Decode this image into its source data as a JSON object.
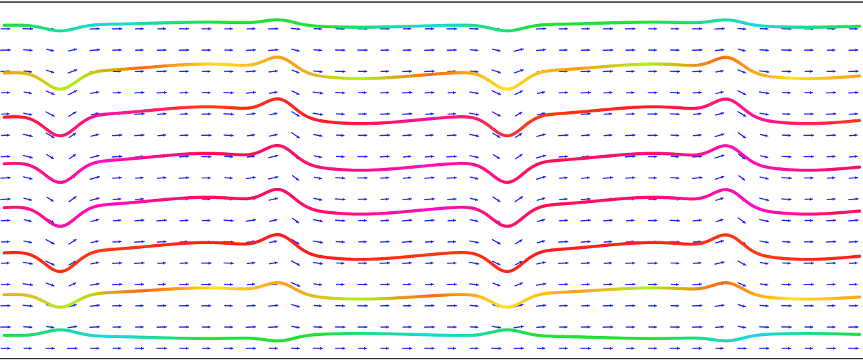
{
  "figure": {
    "kind": "vector-field-with-streamlines",
    "background_color": "#ffffff",
    "frame_color": "#000000",
    "arrow_color": "#1a1aff",
    "arrow_field": {
      "columns": 39,
      "rows": 16,
      "dominant_direction": "right"
    },
    "streamlines": {
      "count": 8,
      "color_scale": [
        "#00d8ff",
        "#00e000",
        "#a0f000",
        "#ffe000",
        "#ff9a00",
        "#ff3a10",
        "#ff1030",
        "#ff20b0"
      ],
      "lines": [
        {
          "id": "line-1",
          "colors": [
            "#22e03a",
            "#1ad8e0",
            "#22e03a"
          ]
        },
        {
          "id": "line-2",
          "colors": [
            "#ff9a1a",
            "#b0f020",
            "#ff6a10",
            "#ffe020"
          ]
        },
        {
          "id": "line-3",
          "colors": [
            "#ff2020",
            "#ff10a0",
            "#ff3a10"
          ]
        },
        {
          "id": "line-4",
          "colors": [
            "#ff1070",
            "#ff10c0",
            "#ff1050"
          ]
        },
        {
          "id": "line-5",
          "colors": [
            "#ff1070",
            "#ff10c0",
            "#ff1050"
          ]
        },
        {
          "id": "line-6",
          "colors": [
            "#ff2020",
            "#ff3a10",
            "#ff2020"
          ]
        },
        {
          "id": "line-7",
          "colors": [
            "#ffa020",
            "#b0f020",
            "#ff6a10",
            "#ffe020"
          ]
        },
        {
          "id": "line-8",
          "colors": [
            "#22e03a",
            "#1ad8e0",
            "#22e03a"
          ]
        }
      ]
    }
  }
}
